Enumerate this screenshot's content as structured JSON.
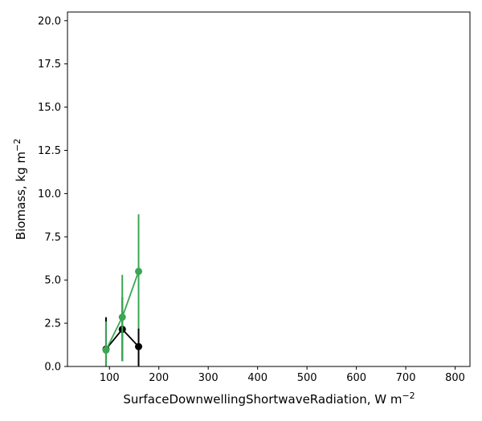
{
  "chart_data": {
    "type": "line",
    "title": "",
    "xlabel": "SurfaceDownwellingShortwaveRadiation,  W m",
    "xlabel_sup": "−2",
    "ylabel": "Biomass,  kg m",
    "ylabel_sup": "−2",
    "xlim": [
      15,
      830
    ],
    "ylim": [
      0,
      20.5
    ],
    "xticks": [
      100,
      200,
      300,
      400,
      500,
      600,
      700,
      800
    ],
    "xtick_labels": [
      "100",
      "200",
      "300",
      "400",
      "500",
      "600",
      "700",
      "800"
    ],
    "yticks": [
      0.0,
      2.5,
      5.0,
      7.5,
      10.0,
      12.5,
      15.0,
      17.5,
      20.0
    ],
    "ytick_labels": [
      "0.0",
      "2.5",
      "5.0",
      "7.5",
      "10.0",
      "12.5",
      "15.0",
      "17.5",
      "20.0"
    ],
    "grid": false,
    "series": [
      {
        "name": "black",
        "color": "#000000",
        "x": [
          93,
          126,
          159
        ],
        "y": [
          1.0,
          2.15,
          1.15
        ],
        "err_low": [
          0.0,
          0.3,
          0.0
        ],
        "err_high": [
          2.85,
          4.0,
          2.2
        ]
      },
      {
        "name": "green",
        "color": "#3aa655",
        "x": [
          93,
          126,
          159
        ],
        "y": [
          0.95,
          2.85,
          5.5
        ],
        "err_low": [
          0.0,
          0.3,
          2.2
        ],
        "err_high": [
          2.6,
          5.3,
          8.8
        ]
      }
    ]
  }
}
